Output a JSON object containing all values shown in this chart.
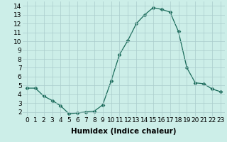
{
  "x": [
    0,
    1,
    2,
    3,
    4,
    5,
    6,
    7,
    8,
    9,
    10,
    11,
    12,
    13,
    14,
    15,
    16,
    17,
    18,
    19,
    20,
    21,
    22,
    23
  ],
  "y": [
    4.7,
    4.7,
    3.8,
    3.3,
    2.7,
    1.8,
    1.9,
    2.0,
    2.1,
    2.8,
    5.5,
    8.5,
    10.1,
    12.0,
    13.0,
    13.8,
    13.6,
    13.3,
    11.1,
    7.0,
    5.3,
    5.2,
    4.6,
    4.3
  ],
  "line_color": "#1a6b5a",
  "marker": "D",
  "marker_size": 2.5,
  "bg_color": "#cceee8",
  "grid_color": "#aacccc",
  "xlabel": "Humidex (Indice chaleur)",
  "xlim": [
    -0.5,
    23.5
  ],
  "ylim": [
    1.5,
    14.5
  ],
  "yticks": [
    2,
    3,
    4,
    5,
    6,
    7,
    8,
    9,
    10,
    11,
    12,
    13,
    14
  ],
  "xticks": [
    0,
    1,
    2,
    3,
    4,
    5,
    6,
    7,
    8,
    9,
    10,
    11,
    12,
    13,
    14,
    15,
    16,
    17,
    18,
    19,
    20,
    21,
    22,
    23
  ],
  "xlabel_fontsize": 7.5,
  "tick_fontsize": 6.5
}
